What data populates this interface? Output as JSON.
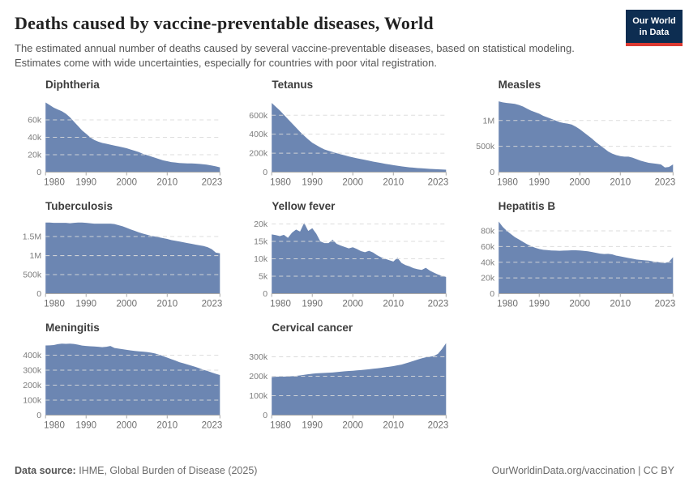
{
  "header": {
    "title": "Deaths caused by vaccine-preventable diseases, World",
    "subtitle": "The estimated annual number of deaths caused by several vaccine-preventable diseases, based on statistical modeling. Estimates come with wide uncertainties, especially for countries with poor vital registration.",
    "logo": {
      "line1": "Our World",
      "line2": "in Data"
    }
  },
  "footer": {
    "source_label": "Data source:",
    "source_text": " IHME, Global Burden of Disease (2025)",
    "right_text": "OurWorldinData.org/vaccination | CC BY"
  },
  "colors": {
    "area": "#6c86b2",
    "grid": "#d9d9d9",
    "axis": "#a8a8a8",
    "logo_bg": "#0d2d51",
    "logo_red": "#dc3a32"
  },
  "chart_data": [
    {
      "type": "area",
      "title": "Diphtheria",
      "x_start": 1980,
      "x_end": 2023,
      "x_ticks": [
        1980,
        1990,
        2000,
        2010,
        2023
      ],
      "ylim": [
        0,
        86000
      ],
      "y_ticks": [
        {
          "v": 0,
          "l": "0"
        },
        {
          "v": 20000,
          "l": "20k"
        },
        {
          "v": 40000,
          "l": "40k"
        },
        {
          "v": 60000,
          "l": "60k"
        }
      ],
      "values": [
        80000,
        77000,
        74000,
        72000,
        70000,
        67000,
        63000,
        58000,
        53000,
        48000,
        44000,
        40000,
        37000,
        35000,
        33500,
        32500,
        31500,
        30500,
        29500,
        28500,
        27500,
        26000,
        24500,
        23000,
        21000,
        19500,
        18000,
        16500,
        15000,
        13500,
        12500,
        11500,
        11000,
        10500,
        10200,
        10000,
        10000,
        9800,
        9400,
        9000,
        8400,
        7600,
        6600,
        5400
      ]
    },
    {
      "type": "area",
      "title": "Tetanus",
      "x_start": 1980,
      "x_end": 2023,
      "x_ticks": [
        1980,
        1990,
        2000,
        2010,
        2023
      ],
      "ylim": [
        0,
        790000
      ],
      "y_ticks": [
        {
          "v": 0,
          "l": "0"
        },
        {
          "v": 200000,
          "l": "200k"
        },
        {
          "v": 400000,
          "l": "400k"
        },
        {
          "v": 600000,
          "l": "600k"
        }
      ],
      "values": [
        730000,
        690000,
        650000,
        605000,
        560000,
        515000,
        470000,
        425000,
        385000,
        345000,
        310000,
        285000,
        260000,
        240000,
        225000,
        212000,
        200000,
        188000,
        177000,
        166000,
        156000,
        147000,
        138000,
        129000,
        120000,
        112000,
        104000,
        96000,
        88000,
        81000,
        74000,
        67000,
        61000,
        56000,
        51000,
        47000,
        43000,
        40000,
        37000,
        34000,
        32000,
        30000,
        28000,
        26000
      ]
    },
    {
      "type": "area",
      "title": "Measles",
      "x_start": 1980,
      "x_end": 2023,
      "x_ticks": [
        1980,
        1990,
        2000,
        2010,
        2023
      ],
      "ylim": [
        0,
        1450000
      ],
      "y_ticks": [
        {
          "v": 0,
          "l": "0"
        },
        {
          "v": 500000,
          "l": "500k"
        },
        {
          "v": 1000000,
          "l": "1M"
        }
      ],
      "values": [
        1370000,
        1350000,
        1340000,
        1330000,
        1320000,
        1300000,
        1270000,
        1230000,
        1190000,
        1160000,
        1130000,
        1090000,
        1060000,
        1030000,
        1000000,
        970000,
        950000,
        940000,
        920000,
        880000,
        830000,
        770000,
        710000,
        650000,
        580000,
        520000,
        460000,
        400000,
        360000,
        330000,
        310000,
        300000,
        300000,
        280000,
        250000,
        220000,
        200000,
        180000,
        170000,
        160000,
        150000,
        90000,
        100000,
        150000
      ]
    },
    {
      "type": "area",
      "title": "Tuberculosis",
      "x_start": 1980,
      "x_end": 2023,
      "x_ticks": [
        1980,
        1990,
        2000,
        2010,
        2023
      ],
      "ylim": [
        0,
        1970000
      ],
      "y_ticks": [
        {
          "v": 0,
          "l": "0"
        },
        {
          "v": 500000,
          "l": "500k"
        },
        {
          "v": 1000000,
          "l": "1M"
        },
        {
          "v": 1500000,
          "l": "1.5M"
        }
      ],
      "values": [
        1870000,
        1870000,
        1860000,
        1860000,
        1860000,
        1860000,
        1850000,
        1860000,
        1870000,
        1870000,
        1860000,
        1850000,
        1840000,
        1840000,
        1840000,
        1840000,
        1840000,
        1830000,
        1800000,
        1770000,
        1730000,
        1690000,
        1650000,
        1610000,
        1580000,
        1550000,
        1520000,
        1500000,
        1480000,
        1460000,
        1440000,
        1410000,
        1390000,
        1370000,
        1350000,
        1330000,
        1310000,
        1290000,
        1270000,
        1250000,
        1220000,
        1170000,
        1080000,
        1060000
      ]
    },
    {
      "type": "area",
      "title": "Yellow fever",
      "x_start": 1980,
      "x_end": 2023,
      "x_ticks": [
        1980,
        1990,
        2000,
        2010,
        2023
      ],
      "ylim": [
        0,
        21500
      ],
      "y_ticks": [
        {
          "v": 0,
          "l": "0"
        },
        {
          "v": 5000,
          "l": "5k"
        },
        {
          "v": 10000,
          "l": "10k"
        },
        {
          "v": 15000,
          "l": "15k"
        },
        {
          "v": 20000,
          "l": "20k"
        }
      ],
      "values": [
        17000,
        16800,
        16500,
        16900,
        16000,
        17500,
        18400,
        17800,
        20300,
        18000,
        18800,
        17200,
        15000,
        14500,
        14500,
        15500,
        14300,
        13800,
        13400,
        13000,
        13300,
        12800,
        12200,
        11900,
        12300,
        11800,
        11000,
        10400,
        10000,
        9600,
        9200,
        10300,
        8800,
        8200,
        7800,
        7300,
        7000,
        6800,
        7400,
        6600,
        6000,
        5500,
        5100,
        4800
      ]
    },
    {
      "type": "area",
      "title": "Hepatitis B",
      "x_start": 1980,
      "x_end": 2023,
      "x_ticks": [
        1980,
        1990,
        2000,
        2010,
        2023
      ],
      "ylim": [
        0,
        95500
      ],
      "y_ticks": [
        {
          "v": 0,
          "l": "0"
        },
        {
          "v": 20000,
          "l": "20k"
        },
        {
          "v": 40000,
          "l": "40k"
        },
        {
          "v": 60000,
          "l": "60k"
        },
        {
          "v": 80000,
          "l": "80k"
        }
      ],
      "values": [
        92000,
        85000,
        80000,
        76000,
        72000,
        69000,
        66000,
        63000,
        60500,
        58500,
        57000,
        56000,
        55500,
        55000,
        54800,
        54600,
        54800,
        55000,
        55200,
        55200,
        55000,
        54500,
        54000,
        53000,
        52000,
        51000,
        50500,
        50800,
        50000,
        48500,
        47500,
        46500,
        45500,
        44500,
        43500,
        43000,
        42500,
        42000,
        41000,
        40500,
        39500,
        39000,
        40500,
        46500
      ]
    },
    {
      "type": "area",
      "title": "Meningitis",
      "x_start": 1980,
      "x_end": 2023,
      "x_ticks": [
        1980,
        1990,
        2000,
        2010,
        2023
      ],
      "ylim": [
        0,
        500000
      ],
      "y_ticks": [
        {
          "v": 0,
          "l": "0"
        },
        {
          "v": 100000,
          "l": "100k"
        },
        {
          "v": 200000,
          "l": "200k"
        },
        {
          "v": 300000,
          "l": "300k"
        },
        {
          "v": 400000,
          "l": "400k"
        }
      ],
      "values": [
        465000,
        466000,
        468000,
        474000,
        477000,
        476000,
        477000,
        475000,
        470000,
        464000,
        462000,
        460000,
        458000,
        456000,
        454000,
        456000,
        462000,
        448000,
        444000,
        440000,
        436000,
        432000,
        429000,
        426000,
        424000,
        421000,
        417000,
        412000,
        404000,
        394000,
        384000,
        374000,
        364000,
        354000,
        346000,
        338000,
        330000,
        322000,
        312000,
        302000,
        294000,
        285000,
        276000,
        268000
      ]
    },
    {
      "type": "area",
      "title": "Cervical cancer",
      "x_start": 1980,
      "x_end": 2023,
      "x_ticks": [
        1980,
        1990,
        2000,
        2010,
        2023
      ],
      "ylim": [
        0,
        385000
      ],
      "y_ticks": [
        {
          "v": 0,
          "l": "0"
        },
        {
          "v": 100000,
          "l": "100k"
        },
        {
          "v": 200000,
          "l": "200k"
        },
        {
          "v": 300000,
          "l": "300k"
        }
      ],
      "values": [
        196000,
        197000,
        198000,
        198000,
        199000,
        200000,
        202000,
        204000,
        207000,
        210000,
        213000,
        215000,
        216000,
        217000,
        218000,
        219000,
        221000,
        223000,
        225000,
        227000,
        228000,
        230000,
        232000,
        234000,
        236000,
        238000,
        240000,
        243000,
        246000,
        249000,
        252000,
        256000,
        260000,
        266000,
        272000,
        279000,
        286000,
        292000,
        297000,
        300000,
        304000,
        315000,
        340000,
        370000
      ]
    }
  ]
}
